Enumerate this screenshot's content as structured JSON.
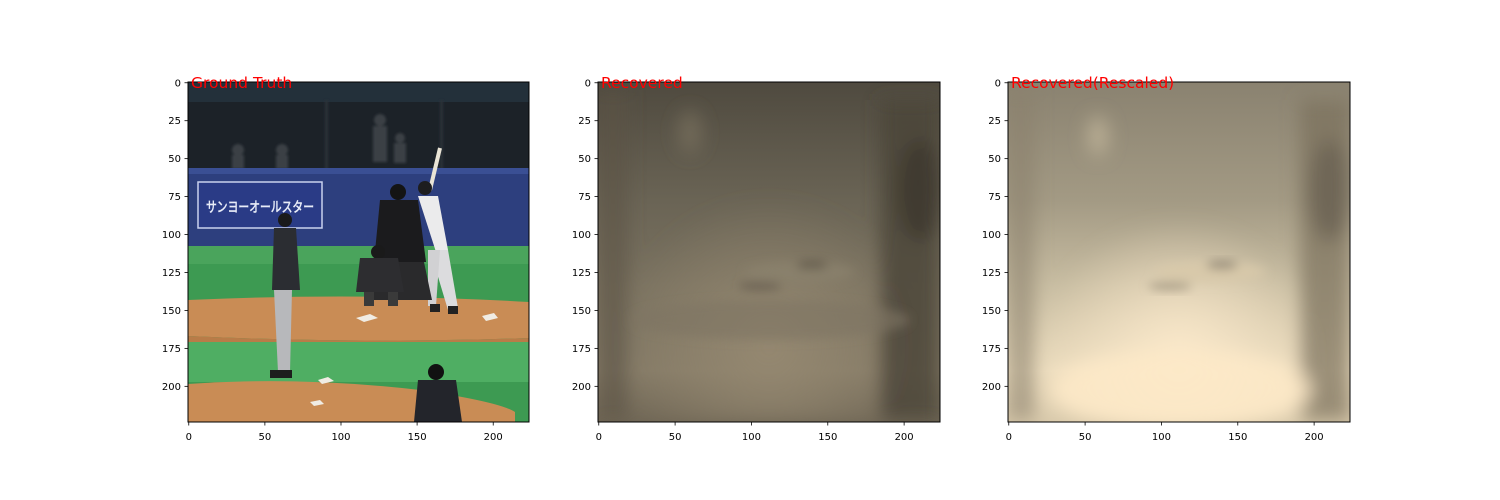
{
  "figure": {
    "panels": [
      {
        "title": "Ground Truth",
        "image": "baseball-pitch-scene",
        "x_ticks": [
          "0",
          "50",
          "100",
          "150",
          "200"
        ],
        "y_ticks": [
          "0",
          "25",
          "50",
          "75",
          "100",
          "125",
          "150",
          "175",
          "200"
        ],
        "sign_text": "サンヨーオールスター"
      },
      {
        "title": "Recovered",
        "image": "blurry-dark-reconstruction",
        "x_ticks": [
          "0",
          "50",
          "100",
          "150",
          "200"
        ],
        "y_ticks": [
          "0",
          "25",
          "50",
          "75",
          "100",
          "125",
          "150",
          "175",
          "200"
        ]
      },
      {
        "title": "Recovered(Rescaled)",
        "image": "blurry-bright-reconstruction",
        "x_ticks": [
          "0",
          "50",
          "100",
          "150",
          "200"
        ],
        "y_ticks": [
          "0",
          "25",
          "50",
          "75",
          "100",
          "125",
          "150",
          "175",
          "200"
        ]
      }
    ],
    "axis": {
      "xlim": [
        0,
        224
      ],
      "ylim": [
        224,
        0
      ]
    },
    "colors": {
      "title": "#ff0000",
      "frame": "#000000"
    }
  }
}
